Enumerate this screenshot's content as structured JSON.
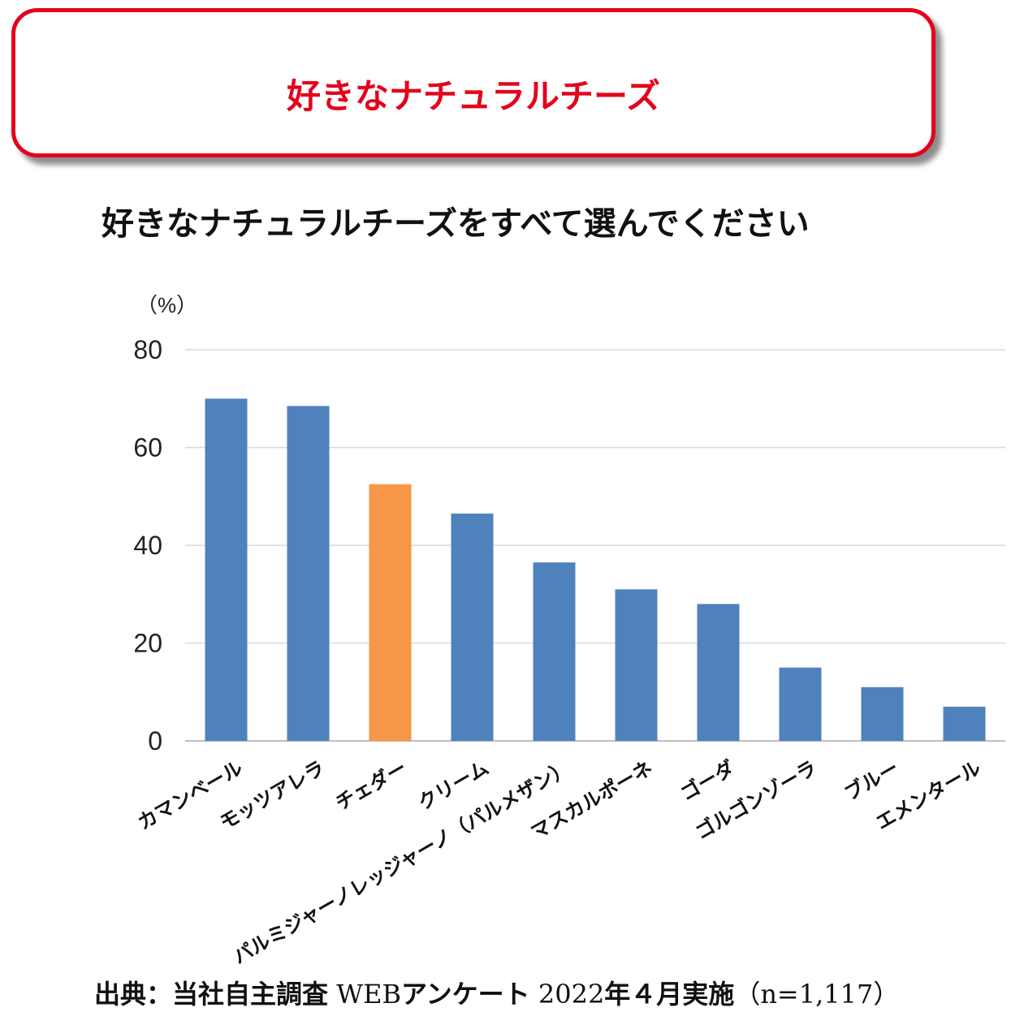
{
  "header": {
    "title": "好きなナチュラルチーズ"
  },
  "question": "好きなナチュラルチーズをすべて選んでください",
  "chart_data": {
    "type": "bar",
    "unit_label": "（%）",
    "ylim": [
      0,
      80
    ],
    "yticks": [
      0,
      20,
      40,
      60,
      80
    ],
    "grid": true,
    "categories": [
      "カマンベール",
      "モッツアレラ",
      "チェダー",
      "クリーム",
      "パルミジャーノレッジャーノ（パルメザン）",
      "マスカルポーネ",
      "ゴーダ",
      "ゴルゴンゾーラ",
      "ブルー",
      "エメンタール"
    ],
    "values": [
      70,
      68.5,
      52.5,
      46.5,
      36.5,
      31,
      28,
      15,
      11,
      7
    ],
    "colors": [
      "#4f81bd",
      "#4f81bd",
      "#f79646",
      "#4f81bd",
      "#4f81bd",
      "#4f81bd",
      "#4f81bd",
      "#4f81bd",
      "#4f81bd",
      "#4f81bd"
    ]
  },
  "source": {
    "part1": "出典：当社自主調査",
    "part2": " WEB",
    "part3": "アンケート",
    "part4": " 2022",
    "part5": "年４月実施",
    "part6": "（n=1,117）"
  }
}
